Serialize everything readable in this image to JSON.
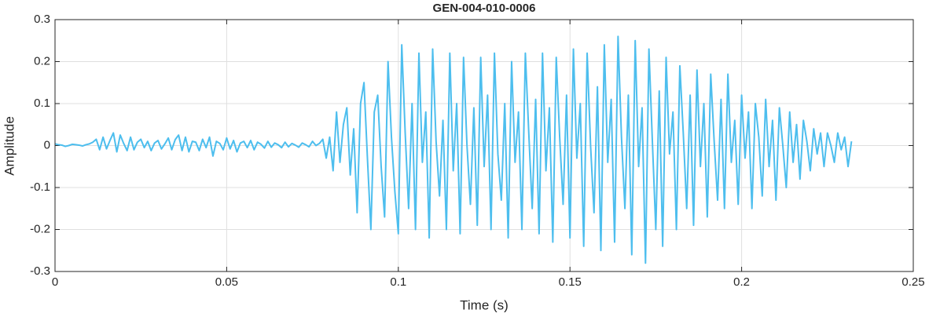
{
  "chart_data": {
    "type": "line",
    "title": "GEN-004-010-0006",
    "x_label": "Time (s)",
    "y_label": "Amplitude",
    "xlim": [
      0,
      0.25
    ],
    "ylim": [
      -0.3,
      0.3
    ],
    "xticks": [
      0,
      0.05,
      0.1,
      0.15,
      0.2,
      0.25
    ],
    "yticks": [
      -0.3,
      -0.2,
      -0.1,
      0,
      0.1,
      0.2,
      0.3
    ],
    "grid": true,
    "x": [
      0,
      0.001,
      0.002,
      0.003,
      0.004,
      0.005,
      0.006,
      0.007,
      0.008,
      0.009,
      0.01,
      0.011,
      0.012,
      0.013,
      0.014,
      0.015,
      0.016,
      0.017,
      0.018,
      0.019,
      0.02,
      0.021,
      0.022,
      0.023,
      0.024,
      0.025,
      0.026,
      0.027,
      0.028,
      0.029,
      0.03,
      0.031,
      0.032,
      0.033,
      0.034,
      0.035,
      0.036,
      0.037,
      0.038,
      0.039,
      0.04,
      0.041,
      0.042,
      0.043,
      0.044,
      0.045,
      0.046,
      0.047,
      0.048,
      0.049,
      0.05,
      0.051,
      0.052,
      0.053,
      0.054,
      0.055,
      0.056,
      0.057,
      0.058,
      0.059,
      0.06,
      0.061,
      0.062,
      0.063,
      0.064,
      0.065,
      0.066,
      0.067,
      0.068,
      0.069,
      0.07,
      0.071,
      0.072,
      0.073,
      0.074,
      0.075,
      0.076,
      0.077,
      0.078,
      0.079,
      0.08,
      0.081,
      0.082,
      0.083,
      0.084,
      0.085,
      0.086,
      0.087,
      0.088,
      0.089,
      0.09,
      0.091,
      0.092,
      0.093,
      0.094,
      0.095,
      0.096,
      0.097,
      0.098,
      0.099,
      0.1,
      0.101,
      0.102,
      0.103,
      0.104,
      0.105,
      0.106,
      0.107,
      0.108,
      0.109,
      0.11,
      0.111,
      0.112,
      0.113,
      0.114,
      0.115,
      0.116,
      0.117,
      0.118,
      0.119,
      0.12,
      0.121,
      0.122,
      0.123,
      0.124,
      0.125,
      0.126,
      0.127,
      0.128,
      0.129,
      0.13,
      0.131,
      0.132,
      0.133,
      0.134,
      0.135,
      0.136,
      0.137,
      0.138,
      0.139,
      0.14,
      0.141,
      0.142,
      0.143,
      0.144,
      0.145,
      0.146,
      0.147,
      0.148,
      0.149,
      0.15,
      0.151,
      0.152,
      0.153,
      0.154,
      0.155,
      0.156,
      0.157,
      0.158,
      0.159,
      0.16,
      0.161,
      0.162,
      0.163,
      0.164,
      0.165,
      0.166,
      0.167,
      0.168,
      0.169,
      0.17,
      0.171,
      0.172,
      0.173,
      0.174,
      0.175,
      0.176,
      0.177,
      0.178,
      0.179,
      0.18,
      0.181,
      0.182,
      0.183,
      0.184,
      0.185,
      0.186,
      0.187,
      0.188,
      0.189,
      0.19,
      0.191,
      0.192,
      0.193,
      0.194,
      0.195,
      0.196,
      0.197,
      0.198,
      0.199,
      0.2,
      0.201,
      0.202,
      0.203,
      0.204,
      0.205,
      0.206,
      0.207,
      0.208,
      0.209,
      0.21,
      0.211,
      0.212,
      0.213,
      0.214,
      0.215,
      0.216,
      0.217,
      0.218,
      0.219,
      0.22,
      0.221,
      0.222,
      0.223,
      0.224,
      0.225,
      0.226,
      0.227,
      0.228,
      0.229,
      0.23,
      0.231,
      0.232
    ],
    "series": [
      {
        "color": "#4dbeee",
        "values": [
          0.004,
          0.002,
          0.001,
          -0.002,
          0.0,
          0.003,
          0.002,
          0.001,
          -0.001,
          0.002,
          0.004,
          0.008,
          0.015,
          -0.01,
          0.02,
          -0.008,
          0.012,
          0.03,
          -0.015,
          0.025,
          0.005,
          -0.012,
          0.02,
          -0.01,
          0.008,
          0.015,
          -0.005,
          0.01,
          -0.012,
          0.006,
          0.012,
          -0.008,
          0.004,
          0.018,
          -0.01,
          0.014,
          0.025,
          -0.012,
          0.02,
          -0.015,
          0.01,
          0.008,
          -0.012,
          0.015,
          -0.005,
          0.02,
          -0.025,
          0.01,
          0.005,
          -0.01,
          0.018,
          -0.008,
          0.012,
          -0.015,
          0.006,
          0.01,
          -0.005,
          0.012,
          -0.01,
          0.008,
          0.003,
          -0.006,
          0.01,
          -0.004,
          0.006,
          0.002,
          -0.005,
          0.008,
          -0.003,
          0.005,
          0.001,
          -0.004,
          0.006,
          0.002,
          -0.003,
          0.01,
          0.0,
          0.005,
          0.015,
          -0.03,
          0.02,
          -0.06,
          0.08,
          -0.04,
          0.05,
          0.09,
          -0.07,
          0.04,
          -0.16,
          0.1,
          0.15,
          -0.03,
          -0.2,
          0.08,
          0.12,
          -0.05,
          -0.17,
          0.2,
          0.02,
          -0.11,
          -0.21,
          0.24,
          0.03,
          -0.15,
          0.1,
          -0.2,
          0.22,
          -0.04,
          0.08,
          -0.22,
          0.23,
          0.01,
          -0.12,
          0.06,
          -0.2,
          0.22,
          -0.06,
          0.1,
          -0.21,
          0.21,
          0.0,
          -0.14,
          0.09,
          -0.19,
          0.21,
          -0.05,
          0.12,
          -0.2,
          0.22,
          -0.02,
          -0.13,
          0.1,
          -0.22,
          0.2,
          -0.04,
          0.08,
          -0.2,
          0.22,
          0.03,
          -0.15,
          0.11,
          -0.21,
          0.22,
          -0.06,
          0.09,
          -0.23,
          0.21,
          0.02,
          -0.14,
          0.12,
          -0.22,
          0.23,
          -0.03,
          0.1,
          -0.24,
          0.22,
          0.0,
          -0.16,
          0.14,
          -0.25,
          0.24,
          -0.04,
          0.11,
          -0.23,
          0.26,
          0.02,
          -0.15,
          0.12,
          -0.26,
          0.25,
          -0.05,
          0.09,
          -0.28,
          0.23,
          0.01,
          -0.2,
          0.13,
          -0.24,
          0.21,
          -0.02,
          0.08,
          -0.2,
          0.19,
          0.03,
          -0.15,
          0.12,
          -0.19,
          0.18,
          -0.05,
          0.1,
          -0.17,
          0.17,
          0.01,
          -0.13,
          0.11,
          -0.15,
          0.17,
          -0.04,
          0.06,
          -0.14,
          0.12,
          -0.03,
          0.08,
          -0.15,
          0.1,
          0.02,
          -0.12,
          0.11,
          -0.05,
          0.06,
          -0.13,
          0.09,
          0.0,
          -0.1,
          0.08,
          -0.04,
          0.05,
          -0.08,
          0.06,
          0.01,
          -0.06,
          0.04,
          -0.02,
          0.03,
          -0.05,
          0.03,
          0.0,
          -0.04,
          0.03,
          -0.01,
          0.02,
          -0.05,
          0.01
        ]
      }
    ]
  }
}
